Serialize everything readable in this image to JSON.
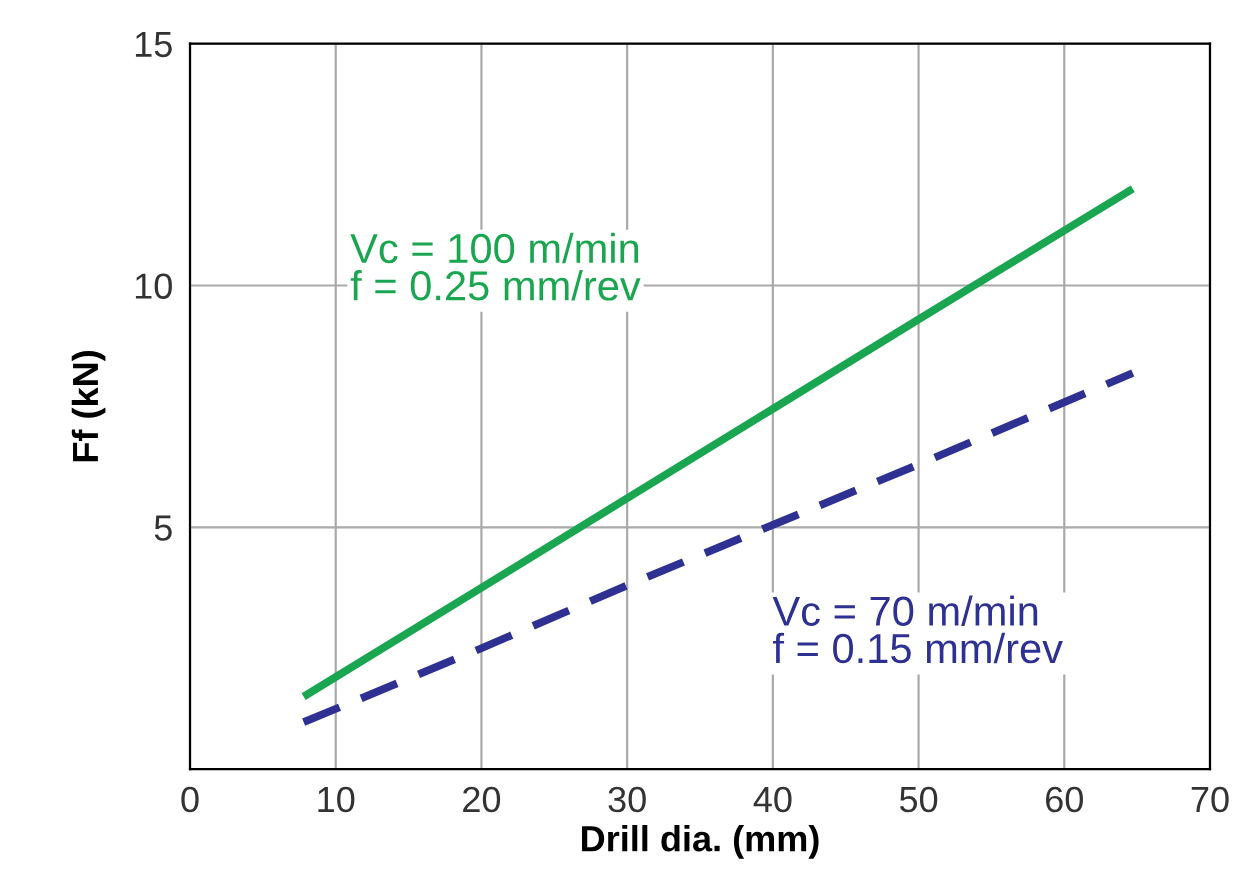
{
  "chart_data": {
    "type": "line",
    "xlabel": "Drill dia. (mm)",
    "ylabel": "Ff (kN)",
    "xlim": [
      0,
      70
    ],
    "ylim": [
      0,
      15
    ],
    "xticks": [
      0,
      10,
      20,
      30,
      40,
      50,
      60,
      70
    ],
    "yticks": [
      5,
      10,
      15
    ],
    "grid": true,
    "legend": false,
    "series": [
      {
        "name": "Vc = 100 m/min\nf = 0.25 mm/rev",
        "color": "#1aa650",
        "x": [
          7.8,
          20,
          30,
          40,
          50,
          64.7
        ],
        "values": [
          1.5,
          3.75,
          5.6,
          7.45,
          9.3,
          12.0
        ],
        "line_style": "solid"
      },
      {
        "name": "Vc = 70 m/min\nf = 0.15 mm/rev",
        "color": "#2e3192",
        "x": [
          7.8,
          20,
          30,
          40,
          50,
          64.7
        ],
        "values": [
          0.97,
          2.5,
          3.8,
          5.05,
          6.3,
          8.19
        ],
        "line_style": "dashed"
      }
    ]
  }
}
